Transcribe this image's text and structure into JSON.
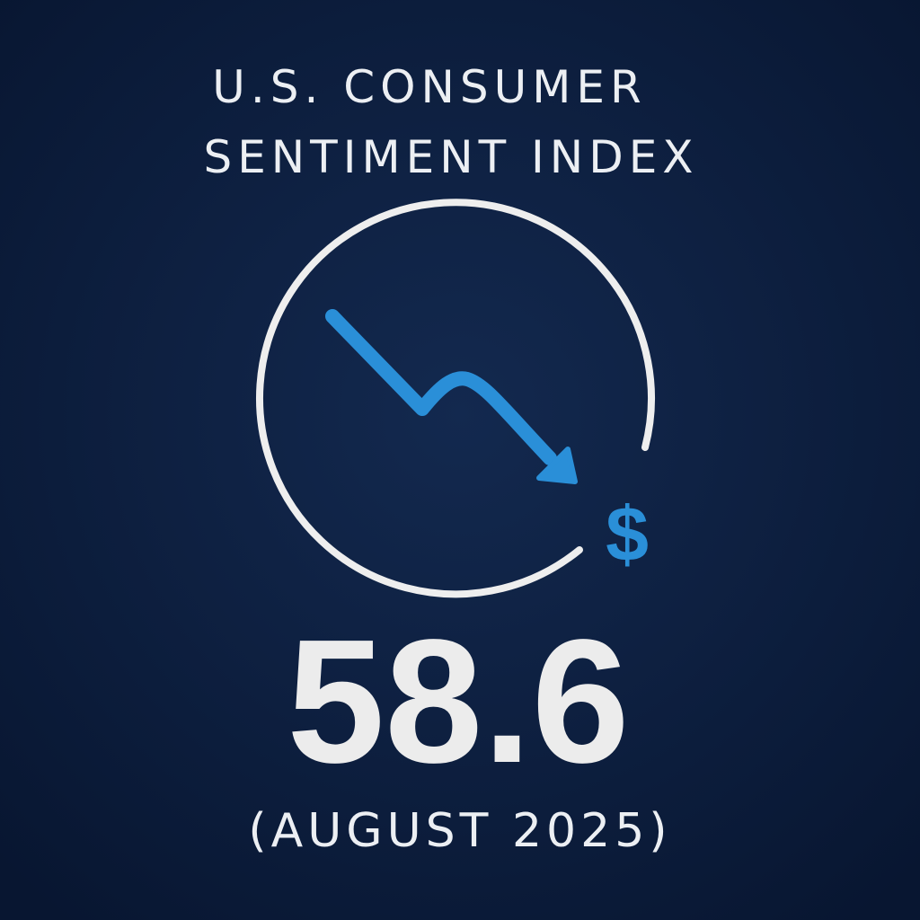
{
  "title": [
    "U.S. CONSUMER",
    "SENTIMENT INDEX"
  ],
  "value": "58.6",
  "period": "(AUGUST 2025)",
  "icon_symbol": "$"
}
